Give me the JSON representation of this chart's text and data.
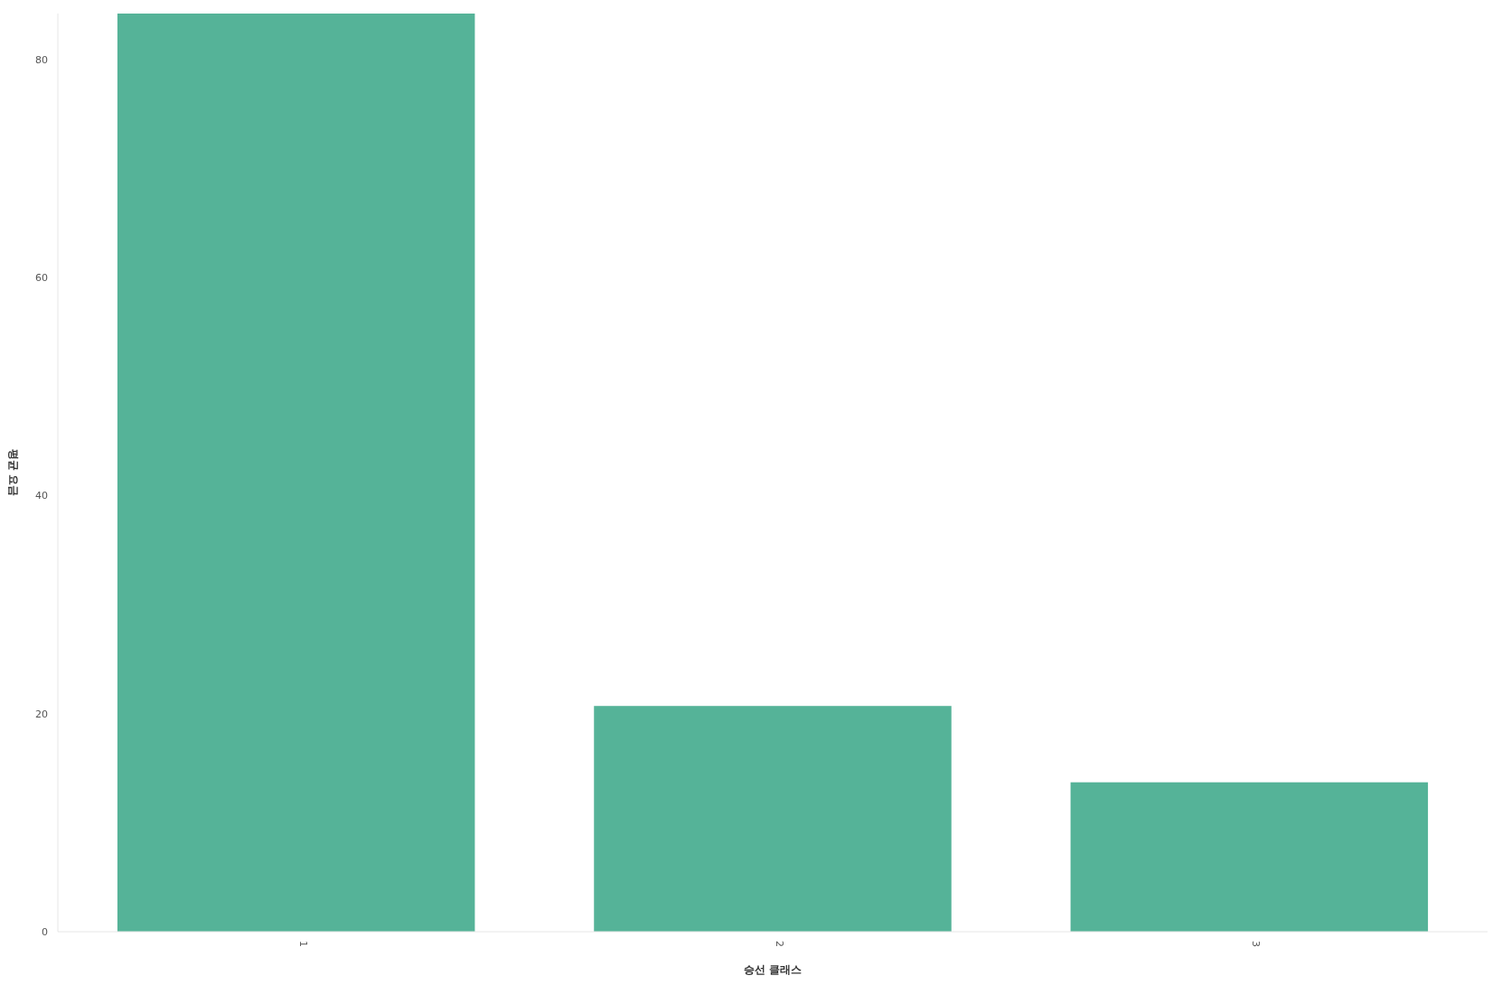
{
  "chart_data": {
    "type": "bar",
    "xlabel": "승선 클래스",
    "ylabel": "평균 요금",
    "categories": [
      "1",
      "2",
      "3"
    ],
    "values": [
      84.2,
      20.7,
      13.7
    ],
    "color": "#55b398",
    "ylim": [
      0,
      84.2
    ],
    "yticks": [
      0,
      20,
      40,
      60,
      80
    ],
    "grid": false
  }
}
